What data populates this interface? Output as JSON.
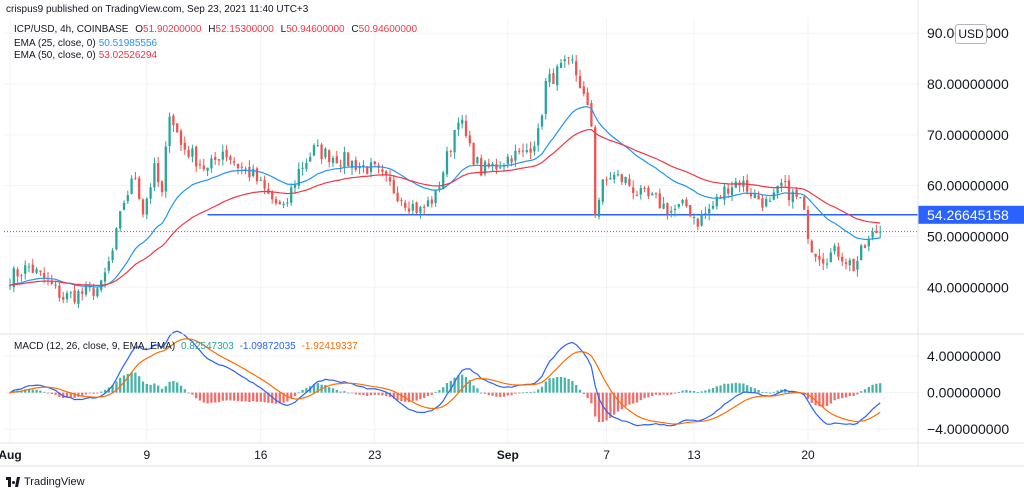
{
  "header": {
    "published": "crispus9 published on TradingView.com, Sep 23, 2021 11:40 UTC+3",
    "symbol": "ICP/USD, 4h, COINBASE",
    "ohlc": {
      "o_label": "O",
      "o": "51.90200000",
      "h_label": "H",
      "h": "52.15300000",
      "l_label": "L",
      "l": "50.94600000",
      "c_label": "C",
      "c": "50.94600000"
    },
    "ema25_label": "EMA (25, close, 0)",
    "ema25_value": "50.51985556",
    "ema50_label": "EMA (50, close, 0)",
    "ema50_value": "53.02526294"
  },
  "macd_legend": {
    "label": "MACD (12, 26, close, 9, EMA, EMA)",
    "hist_value": "0.82547303",
    "macd_value": "-1.09872035",
    "signal_value": "-1.92419337"
  },
  "currency": "USD",
  "footer": {
    "brand": "TradingView"
  },
  "colors": {
    "up": "#26a69a",
    "down": "#ef5350",
    "ema25": "#2196f3",
    "ema50": "#f23645",
    "hline": "#2962ff",
    "macd": "#2962ff",
    "signal": "#ff6d00",
    "hist_up": "#26a69a",
    "hist_down": "#ef5350",
    "last_price": "#f23645"
  },
  "chart_data": {
    "type": "candlestick",
    "price_axis": {
      "ticks": [
        "40.00000000",
        "50.00000000",
        "60.00000000",
        "70.00000000",
        "80.00000000",
        "90.00000000"
      ],
      "values": [
        40,
        50,
        60,
        70,
        80,
        90
      ],
      "ylim": [
        31,
        93
      ]
    },
    "time_axis": {
      "labels": [
        "Aug",
        "9",
        "16",
        "23",
        "Sep",
        "7",
        "13",
        "20"
      ],
      "bar_index": [
        0,
        36,
        66,
        96,
        131,
        157,
        180,
        210
      ]
    },
    "horizontal_line": {
      "value": 54.26645158,
      "label": "54.26645158",
      "start_bar": 52
    },
    "last_price": 50.946,
    "macd_axis": {
      "ticks": [
        "4.00000000",
        "0.00000000",
        "−4.00000000"
      ],
      "values": [
        4,
        0,
        -4
      ],
      "ylim": [
        -5.4,
        6.2
      ]
    },
    "price_anchors": [
      [
        0,
        42
      ],
      [
        5,
        44
      ],
      [
        10,
        41
      ],
      [
        14,
        38
      ],
      [
        20,
        39
      ],
      [
        24,
        40
      ],
      [
        27,
        47
      ],
      [
        30,
        57
      ],
      [
        33,
        62
      ],
      [
        35,
        55
      ],
      [
        38,
        63
      ],
      [
        40,
        58
      ],
      [
        42,
        75
      ],
      [
        45,
        68
      ],
      [
        48,
        66
      ],
      [
        52,
        63
      ],
      [
        56,
        67
      ],
      [
        60,
        64
      ],
      [
        64,
        62
      ],
      [
        68,
        58
      ],
      [
        72,
        55
      ],
      [
        76,
        63
      ],
      [
        80,
        67
      ],
      [
        84,
        66
      ],
      [
        88,
        65
      ],
      [
        92,
        64
      ],
      [
        96,
        63
      ],
      [
        100,
        60
      ],
      [
        104,
        57
      ],
      [
        108,
        55
      ],
      [
        112,
        58
      ],
      [
        116,
        68
      ],
      [
        118,
        74
      ],
      [
        121,
        67
      ],
      [
        124,
        63
      ],
      [
        128,
        64
      ],
      [
        132,
        66
      ],
      [
        135,
        66
      ],
      [
        139,
        70
      ],
      [
        141,
        80
      ],
      [
        145,
        83
      ],
      [
        148,
        84
      ],
      [
        150,
        80
      ],
      [
        153,
        72
      ],
      [
        154,
        55
      ],
      [
        156,
        60
      ],
      [
        158,
        62
      ],
      [
        162,
        61
      ],
      [
        166,
        58
      ],
      [
        170,
        57
      ],
      [
        174,
        55
      ],
      [
        178,
        56
      ],
      [
        181,
        53
      ],
      [
        185,
        56
      ],
      [
        189,
        60
      ],
      [
        192,
        61
      ],
      [
        196,
        58
      ],
      [
        200,
        56
      ],
      [
        203,
        60
      ],
      [
        206,
        58
      ],
      [
        208,
        57
      ],
      [
        211,
        48
      ],
      [
        214,
        46
      ],
      [
        218,
        47
      ],
      [
        222,
        44
      ],
      [
        225,
        48
      ],
      [
        228,
        51
      ]
    ],
    "bars_count": 230,
    "series": [
      {
        "name": "EMA (25, close, 0)",
        "type": "line"
      },
      {
        "name": "EMA (50, close, 0)",
        "type": "line"
      },
      {
        "name": "MACD",
        "type": "line"
      },
      {
        "name": "Signal",
        "type": "line"
      },
      {
        "name": "Histogram",
        "type": "bar"
      }
    ]
  }
}
